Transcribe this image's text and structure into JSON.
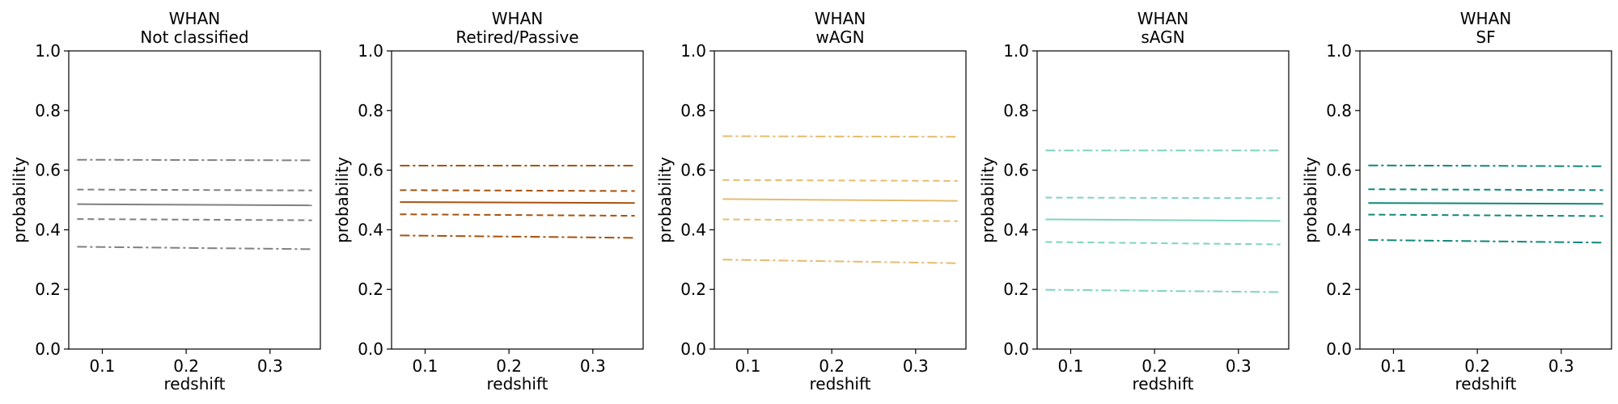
{
  "chart_data": [
    {
      "type": "line",
      "title": "WHAN\nNot classified",
      "xlabel": "redshift",
      "ylabel": "probability",
      "xlim": [
        0.06,
        0.36
      ],
      "ylim": [
        0.0,
        1.0
      ],
      "xticks": [
        0.1,
        0.2,
        0.3
      ],
      "xtick_labels": [
        "0.1",
        "0.2",
        "0.3"
      ],
      "yticks": [
        0.0,
        0.2,
        0.4,
        0.6,
        0.8,
        1.0
      ],
      "ytick_labels": [
        "0.0",
        "0.2",
        "0.4",
        "0.6",
        "0.8",
        "1.0"
      ],
      "color": "#808080",
      "grid": false,
      "series": [
        {
          "style": "dashdot",
          "x": [
            0.07,
            0.35
          ],
          "y": [
            0.635,
            0.633
          ]
        },
        {
          "style": "dashed",
          "x": [
            0.07,
            0.35
          ],
          "y": [
            0.535,
            0.532
          ]
        },
        {
          "style": "solid",
          "x": [
            0.07,
            0.35
          ],
          "y": [
            0.486,
            0.482
          ]
        },
        {
          "style": "dashed",
          "x": [
            0.07,
            0.35
          ],
          "y": [
            0.436,
            0.432
          ]
        },
        {
          "style": "dashdot",
          "x": [
            0.07,
            0.35
          ],
          "y": [
            0.343,
            0.335
          ]
        }
      ]
    },
    {
      "type": "line",
      "title": "WHAN\nRetired/Passive",
      "xlabel": "redshift",
      "ylabel": "probability",
      "xlim": [
        0.06,
        0.36
      ],
      "ylim": [
        0.0,
        1.0
      ],
      "xticks": [
        0.1,
        0.2,
        0.3
      ],
      "xtick_labels": [
        "0.1",
        "0.2",
        "0.3"
      ],
      "yticks": [
        0.0,
        0.2,
        0.4,
        0.6,
        0.8,
        1.0
      ],
      "ytick_labels": [
        "0.0",
        "0.2",
        "0.4",
        "0.6",
        "0.8",
        "1.0"
      ],
      "color": "#a6520e",
      "grid": false,
      "series": [
        {
          "style": "dashdot",
          "x": [
            0.07,
            0.35
          ],
          "y": [
            0.615,
            0.615
          ]
        },
        {
          "style": "dashed",
          "x": [
            0.07,
            0.35
          ],
          "y": [
            0.533,
            0.53
          ]
        },
        {
          "style": "solid",
          "x": [
            0.07,
            0.35
          ],
          "y": [
            0.493,
            0.49
          ]
        },
        {
          "style": "dashed",
          "x": [
            0.07,
            0.35
          ],
          "y": [
            0.452,
            0.447
          ]
        },
        {
          "style": "dashdot",
          "x": [
            0.07,
            0.35
          ],
          "y": [
            0.381,
            0.373
          ]
        }
      ]
    },
    {
      "type": "line",
      "title": "WHAN\nwAGN",
      "xlabel": "redshift",
      "ylabel": "probability",
      "xlim": [
        0.06,
        0.36
      ],
      "ylim": [
        0.0,
        1.0
      ],
      "xticks": [
        0.1,
        0.2,
        0.3
      ],
      "xtick_labels": [
        "0.1",
        "0.2",
        "0.3"
      ],
      "yticks": [
        0.0,
        0.2,
        0.4,
        0.6,
        0.8,
        1.0
      ],
      "ytick_labels": [
        "0.0",
        "0.2",
        "0.4",
        "0.6",
        "0.8",
        "1.0"
      ],
      "color": "#e5bc6f",
      "grid": false,
      "series": [
        {
          "style": "dashdot",
          "x": [
            0.07,
            0.35
          ],
          "y": [
            0.714,
            0.712
          ]
        },
        {
          "style": "dashed",
          "x": [
            0.07,
            0.35
          ],
          "y": [
            0.567,
            0.564
          ]
        },
        {
          "style": "solid",
          "x": [
            0.07,
            0.35
          ],
          "y": [
            0.503,
            0.497
          ]
        },
        {
          "style": "dashed",
          "x": [
            0.07,
            0.35
          ],
          "y": [
            0.435,
            0.429
          ]
        },
        {
          "style": "dashdot",
          "x": [
            0.07,
            0.35
          ],
          "y": [
            0.3,
            0.288
          ]
        }
      ]
    },
    {
      "type": "line",
      "title": "WHAN\nsAGN",
      "xlabel": "redshift",
      "ylabel": "probability",
      "xlim": [
        0.06,
        0.36
      ],
      "ylim": [
        0.0,
        1.0
      ],
      "xticks": [
        0.1,
        0.2,
        0.3
      ],
      "xtick_labels": [
        "0.1",
        "0.2",
        "0.3"
      ],
      "yticks": [
        0.0,
        0.2,
        0.4,
        0.6,
        0.8,
        1.0
      ],
      "ytick_labels": [
        "0.0",
        "0.2",
        "0.4",
        "0.6",
        "0.8",
        "1.0"
      ],
      "color": "#7fd3c3",
      "grid": false,
      "series": [
        {
          "style": "dashdot",
          "x": [
            0.07,
            0.35
          ],
          "y": [
            0.666,
            0.666
          ]
        },
        {
          "style": "dashed",
          "x": [
            0.07,
            0.35
          ],
          "y": [
            0.508,
            0.506
          ]
        },
        {
          "style": "solid",
          "x": [
            0.07,
            0.35
          ],
          "y": [
            0.435,
            0.43
          ]
        },
        {
          "style": "dashed",
          "x": [
            0.07,
            0.35
          ],
          "y": [
            0.359,
            0.351
          ]
        },
        {
          "style": "dashdot",
          "x": [
            0.07,
            0.35
          ],
          "y": [
            0.199,
            0.191
          ]
        }
      ]
    },
    {
      "type": "line",
      "title": "WHAN\nSF",
      "xlabel": "redshift",
      "ylabel": "probability",
      "xlim": [
        0.06,
        0.36
      ],
      "ylim": [
        0.0,
        1.0
      ],
      "xticks": [
        0.1,
        0.2,
        0.3
      ],
      "xtick_labels": [
        "0.1",
        "0.2",
        "0.3"
      ],
      "yticks": [
        0.0,
        0.2,
        0.4,
        0.6,
        0.8,
        1.0
      ],
      "ytick_labels": [
        "0.0",
        "0.2",
        "0.4",
        "0.6",
        "0.8",
        "1.0"
      ],
      "color": "#11877a",
      "grid": false,
      "series": [
        {
          "style": "dashdot",
          "x": [
            0.07,
            0.35
          ],
          "y": [
            0.616,
            0.613
          ]
        },
        {
          "style": "dashed",
          "x": [
            0.07,
            0.35
          ],
          "y": [
            0.536,
            0.533
          ]
        },
        {
          "style": "solid",
          "x": [
            0.07,
            0.35
          ],
          "y": [
            0.49,
            0.487
          ]
        },
        {
          "style": "dashed",
          "x": [
            0.07,
            0.35
          ],
          "y": [
            0.451,
            0.446
          ]
        },
        {
          "style": "dashdot",
          "x": [
            0.07,
            0.35
          ],
          "y": [
            0.366,
            0.357
          ]
        }
      ]
    }
  ]
}
